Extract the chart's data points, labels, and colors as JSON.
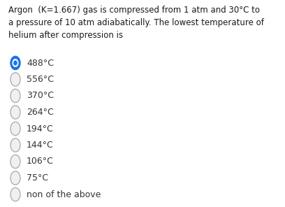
{
  "question_line1": "Argon  (K=1.667) gas is compressed from 1 atm and 30°C to",
  "question_line2": "a pressure of 10 atm adiabatically. The lowest temperature of",
  "question_line3": "helium after compression is",
  "options": [
    "488°C",
    "556°C",
    "370°C",
    "264°C",
    "194°C",
    "144°C",
    "106°C",
    "75°C",
    "non of the above"
  ],
  "selected_index": 0,
  "bg_color": "#ffffff",
  "text_color": "#1a1a1a",
  "option_text_color": "#333333",
  "radio_unselected_edge": "#b0b0b0",
  "radio_unselected_fill": "#f0f0f0",
  "radio_selected_fill": "#1a73e8",
  "radio_selected_border": "#1565c0",
  "font_size_question": 8.5,
  "font_size_options": 9.0,
  "fig_width": 4.08,
  "fig_height": 2.96,
  "dpi": 100
}
